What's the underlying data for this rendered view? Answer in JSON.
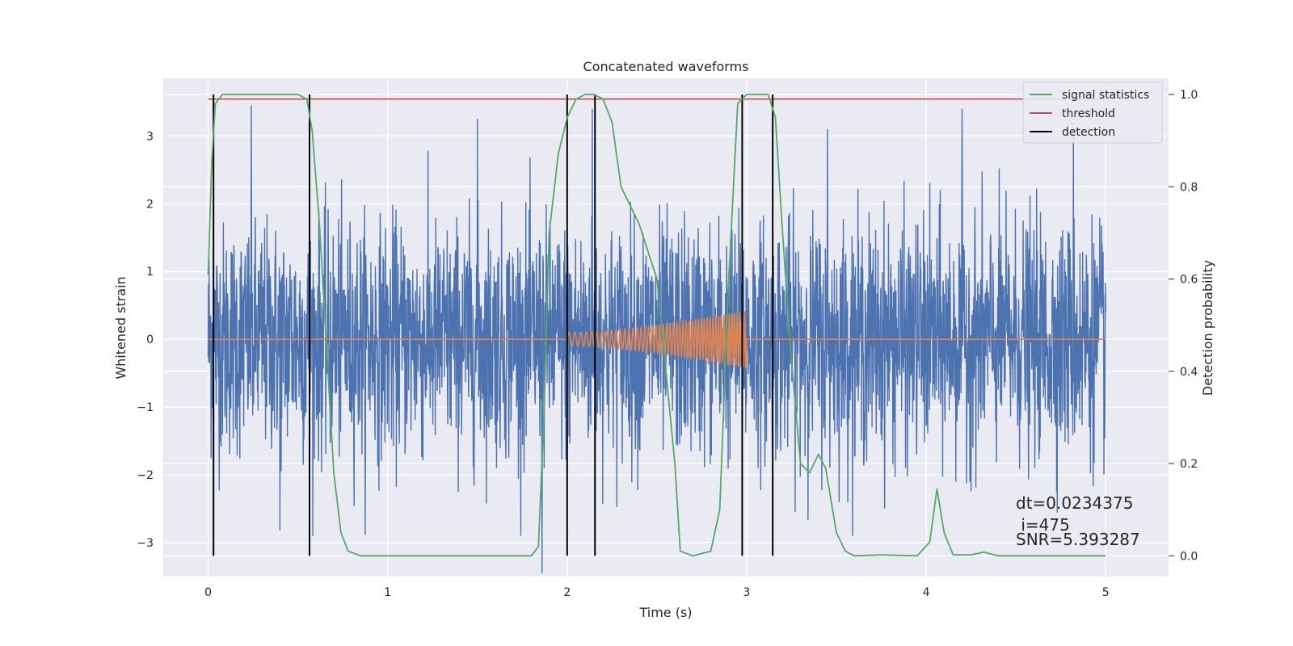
{
  "chart_data": {
    "type": "line",
    "title": "Concatenated waveforms",
    "xlabel": "Time (s)",
    "ylabel": "Whitened strain",
    "y2label": "Detection probability",
    "xlim": [
      -0.25,
      5.35
    ],
    "ylim": [
      -3.5,
      3.85
    ],
    "y2lim": [
      -0.045,
      1.035
    ],
    "xticks": [
      0,
      1,
      2,
      3,
      4,
      5
    ],
    "xtick_labels": [
      "0",
      "1",
      "2",
      "3",
      "4",
      "5"
    ],
    "yticks": [
      3,
      2,
      1,
      0,
      -1,
      -2,
      -3
    ],
    "ytick_labels": [
      "3",
      "2",
      "1",
      "0",
      "−1",
      "−2",
      "−3"
    ],
    "y2ticks": [
      1.0,
      0.8,
      0.6,
      0.4,
      0.2,
      0.0
    ],
    "y2tick_labels": [
      "1.0",
      "0.8",
      "0.6",
      "0.4",
      "0.2",
      "0.0"
    ],
    "grid": true,
    "legend_position": "top-right",
    "colors": {
      "strain": "#4c72b0",
      "injection": "#dd8452",
      "signal_statistics": "#55a868",
      "threshold": "#c44e52",
      "detection": "#000000",
      "axes_bg": "#eaeaf2",
      "grid": "#ffffff"
    },
    "series": [
      {
        "name": "",
        "role": "strain",
        "x_range": [
          0,
          5
        ],
        "typical_amplitude": 1.5,
        "peak_points": [
          [
            0.24,
            3.45
          ],
          [
            1.5,
            3.25
          ],
          [
            2.14,
            3.4
          ],
          [
            3.45,
            3.1
          ],
          [
            4.2,
            3.4
          ],
          [
            4.82,
            3.2
          ],
          [
            1.86,
            -3.45
          ],
          [
            0.4,
            -2.82
          ]
        ]
      },
      {
        "name": "",
        "role": "injection",
        "x_range": [
          0,
          5
        ],
        "chirp_start": 2.0,
        "chirp_end": 3.0,
        "chirp_start_amplitude": 0.1,
        "chirp_end_amplitude": 0.42
      },
      {
        "name": "signal statistics",
        "role": "signal_statistics",
        "points": [
          [
            0,
            0.61
          ],
          [
            0.02,
            0.85
          ],
          [
            0.04,
            0.98
          ],
          [
            0.08,
            1.0
          ],
          [
            0.5,
            1.0
          ],
          [
            0.55,
            0.99
          ],
          [
            0.58,
            0.92
          ],
          [
            0.62,
            0.72
          ],
          [
            0.66,
            0.45
          ],
          [
            0.7,
            0.18
          ],
          [
            0.74,
            0.05
          ],
          [
            0.78,
            0.01
          ],
          [
            0.85,
            0.0
          ],
          [
            1.8,
            0.0
          ],
          [
            1.84,
            0.02
          ],
          [
            1.87,
            0.3
          ],
          [
            1.9,
            0.7
          ],
          [
            1.95,
            0.87
          ],
          [
            2.0,
            0.95
          ],
          [
            2.05,
            0.99
          ],
          [
            2.1,
            1.0
          ],
          [
            2.15,
            1.0
          ],
          [
            2.2,
            0.99
          ],
          [
            2.25,
            0.94
          ],
          [
            2.3,
            0.8
          ],
          [
            2.4,
            0.72
          ],
          [
            2.5,
            0.6
          ],
          [
            2.6,
            0.2
          ],
          [
            2.63,
            0.01
          ],
          [
            2.7,
            0.0
          ],
          [
            2.8,
            0.01
          ],
          [
            2.85,
            0.1
          ],
          [
            2.9,
            0.6
          ],
          [
            2.95,
            0.98
          ],
          [
            3.0,
            1.0
          ],
          [
            3.12,
            1.0
          ],
          [
            3.16,
            0.95
          ],
          [
            3.2,
            0.7
          ],
          [
            3.25,
            0.42
          ],
          [
            3.3,
            0.2
          ],
          [
            3.35,
            0.18
          ],
          [
            3.4,
            0.22
          ],
          [
            3.44,
            0.19
          ],
          [
            3.5,
            0.05
          ],
          [
            3.55,
            0.01
          ],
          [
            3.6,
            0.0
          ],
          [
            3.75,
            0.002
          ],
          [
            3.95,
            0.0
          ],
          [
            4.02,
            0.03
          ],
          [
            4.06,
            0.145
          ],
          [
            4.1,
            0.05
          ],
          [
            4.15,
            0.002
          ],
          [
            4.25,
            0.002
          ],
          [
            4.32,
            0.008
          ],
          [
            4.4,
            0.0
          ],
          [
            5.0,
            0.0
          ]
        ]
      },
      {
        "name": "threshold",
        "role": "threshold",
        "value": 0.99,
        "x_range": [
          0,
          5
        ]
      },
      {
        "name": "detection",
        "role": "detection",
        "times": [
          0.03,
          0.565,
          2.0,
          2.155,
          2.975,
          3.145
        ]
      }
    ],
    "annotations": [
      "dt=0.0234375",
      " i=475",
      "SNR=5.393287"
    ]
  }
}
